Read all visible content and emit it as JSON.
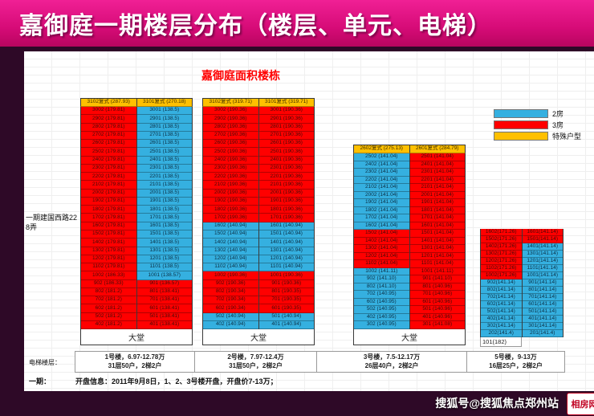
{
  "banner": {
    "title": "嘉御庭一期楼层分布（楼层、单元、电梯）"
  },
  "sheet": {
    "title": "嘉御庭面积楼栋",
    "address_label": "一期建国西路228弄",
    "legend": [
      {
        "label": "2房",
        "color": "#35b0e0"
      },
      {
        "label": "3房",
        "color": "#ff0000"
      },
      {
        "label": "特殊户型",
        "color": "#ffc000"
      }
    ],
    "colors": {
      "two_room": "#35b0e0",
      "three_room": "#ff0000",
      "special": "#ffc000"
    },
    "buildings": [
      {
        "id": "b1",
        "num": "1",
        "headers": [
          "3102复式 (287.93)",
          "3101复式 (270.18)"
        ],
        "columns": [
          [
            "r|3002 (179.81)",
            "r|2902 (179.81)",
            "r|2802 (179.81)",
            "r|2702 (179.81)",
            "r|2602 (179.81)",
            "r|2502 (179.81)",
            "r|2402 (179.81)",
            "r|2302 (179.81)",
            "r|2202 (179.81)",
            "r|2102 (179.81)",
            "r|2002 (179.81)",
            "r|1902 (179.81)",
            "r|1802 (179.81)",
            "r|1702 (179.81)",
            "r|1602 (179.81)",
            "r|1502 (179.81)",
            "r|1402 (179.81)",
            "r|1302 (179.81)",
            "r|1202 (179.81)",
            "r|1102 (179.81)",
            "r|1002 (186.33)",
            "r|902 (186.33)",
            "r|802 (181.2)",
            "r|702 (181.2)",
            "r|602 (181.2)",
            "r|502 (181.2)",
            "r|402 (181.2)"
          ],
          [
            "b|3001 (138.5)",
            "b|2901 (138.5)",
            "b|2801 (138.5)",
            "b|2701 (138.5)",
            "b|2601 (138.5)",
            "b|2501 (138.5)",
            "b|2401 (138.5)",
            "b|2301 (138.5)",
            "b|2201 (138.5)",
            "b|2101 (138.5)",
            "b|2001 (138.5)",
            "b|1901 (138.5)",
            "b|1801 (138.5)",
            "b|1701 (138.5)",
            "b|1601 (138.5)",
            "b|1501 (138.5)",
            "b|1401 (138.5)",
            "b|1301 (138.5)",
            "b|1201 (138.5)",
            "b|1101 (138.5)",
            "b|1001 (138.57)",
            "r|901 (136.57)",
            "r|801 (138.41)",
            "r|701 (138.41)",
            "r|601 (138.41)",
            "r|501 (138.41)",
            "r|401 (138.41)"
          ]
        ],
        "lobby": "大堂",
        "info_line1": "1号楼，6.97-12.78万",
        "info_line2": "31层50户，2梯2户"
      },
      {
        "id": "b2",
        "num": "2",
        "headers": [
          "3102复式 (319.71)",
          "3101复式 (319.71)"
        ],
        "columns": [
          [
            "r|3002 (190.36)",
            "r|2902 (190.36)",
            "r|2802 (190.36)",
            "r|2702 (190.36)",
            "r|2602 (190.36)",
            "r|2502 (190.36)",
            "r|2402 (190.36)",
            "r|2302 (190.36)",
            "r|2202 (190.36)",
            "r|2102 (190.36)",
            "r|2002 (190.36)",
            "r|1902 (190.36)",
            "r|1802 (190.36)",
            "r|1702 (190.36)",
            "b|1602 (140.94)",
            "b|1502 (140.94)",
            "b|1402 (140.94)",
            "b|1302 (140.94)",
            "b|1202 (140.94)",
            "b|1102 (140.94)",
            "r|1002 (190.36)",
            "r|902 (190.36)",
            "r|802 (190.34)",
            "r|702 (190.34)",
            "r|602 (190.34)",
            "b|502 (140.94)",
            "b|402 (140.94)"
          ],
          [
            "r|3001 (190.36)",
            "r|2901 (190.36)",
            "r|2801 (190.36)",
            "r|2701 (190.36)",
            "r|2601 (190.36)",
            "r|2501 (190.36)",
            "r|2401 (190.36)",
            "r|2301 (190.36)",
            "r|2201 (190.36)",
            "r|2101 (190.36)",
            "r|2001 (190.36)",
            "r|1901 (190.36)",
            "r|1801 (190.36)",
            "r|1701 (190.36)",
            "b|1601 (140.94)",
            "b|1501 (140.94)",
            "b|1401 (140.94)",
            "b|1301 (140.94)",
            "b|1201 (140.94)",
            "b|1101 (140.94)",
            "r|1001 (190.36)",
            "r|901 (190.36)",
            "r|801 (190.35)",
            "r|701 (190.35)",
            "r|601 (190.35)",
            "b|501 (140.94)",
            "b|401 (140.94)"
          ]
        ],
        "lobby": "大堂",
        "info_line1": "2号楼，7.97-12.4万",
        "info_line2": "31层50户，2梯2户"
      },
      {
        "id": "b3",
        "num": "3",
        "headers": [
          "2602复式 (275.13)",
          "2601复式 (284.79)"
        ],
        "columns": [
          [
            "b|2502 (141.04)",
            "b|2402 (141.04)",
            "b|2302 (141.04)",
            "b|2202 (141.04)",
            "b|2102 (141.04)",
            "b|2002 (141.04)",
            "b|1902 (141.04)",
            "b|1802 (141.04)",
            "b|1702 (141.04)",
            "b|1602 (141.04)",
            "r|1502 (141.04)",
            "r|1402 (141.04)",
            "r|1302 (141.04)",
            "r|1202 (141.04)",
            "r|1102 (141.04)",
            "b|1002 (141.11)",
            "b|902 (141.10)",
            "b|802 (141.10)",
            "b|702 (140.95)",
            "b|602 (140.95)",
            "b|502 (140.95)",
            "b|402 (140.95)",
            "b|302 (140.95)"
          ],
          [
            "r|2501 (141.04)",
            "r|2401 (141.04)",
            "r|2301 (141.04)",
            "r|2201 (141.04)",
            "r|2101 (141.04)",
            "r|2001 (141.04)",
            "r|1901 (141.04)",
            "r|1801 (141.04)",
            "r|1701 (141.04)",
            "r|1601 (141.04)",
            "r|1501 (141.04)",
            "r|1401 (141.04)",
            "r|1301 (141.04)",
            "r|1201 (141.04)",
            "r|1101 (141.04)",
            "r|1001 (141.11)",
            "r|901 (141.10)",
            "r|801 (140.96)",
            "r|701 (140.96)",
            "r|601 (140.96)",
            "r|501 (140.96)",
            "r|401 (140.96)",
            "r|301 (141.08)"
          ]
        ],
        "lobby": "大堂",
        "info_line1": "3号楼，7.5-12.17万",
        "info_line2": "26层40户，2梯2户"
      },
      {
        "id": "b5",
        "num": "5",
        "headers": [],
        "columns": [
          [
            "r|1602(171.26)",
            "r|1502(171.26)",
            "r|1402(171.26)",
            "r|1302(171.26)",
            "r|1202(171.26)",
            "r|1102(171.26)",
            "r|1002(171.26)",
            "b|902(141.14)",
            "b|802(141.14)",
            "b|702(141.14)",
            "b|602(141.14)",
            "b|502(141.14)",
            "b|402(141.14)",
            "b|302(141.14)",
            "b|202(141.4)"
          ],
          [
            "r|1601(141.14)",
            "r|1501(141.14)",
            "b|1401(141.14)",
            "b|1301(141.14)",
            "b|1201(141.14)",
            "b|1101(141.14)",
            "b|1001(141.14)",
            "b|901(141.14)",
            "b|801(141.14)",
            "b|701(141.14)",
            "b|601(141.14)",
            "b|501(141.14)",
            "b|401(141.14)",
            "b|301(141.14)",
            "b|201(141.4)"
          ]
        ],
        "footnote": "101(182)",
        "info_line1": "5号楼，9-13万",
        "info_line2": "16层25户，2梯2户"
      }
    ],
    "footer": {
      "elevator_label": "电梯楼层：",
      "phase_label": "一期：",
      "opening_info": "开盘信息：2011年9月8日，1、2、3号楼开盘，开盘价7-13万；"
    }
  },
  "watermark": {
    "text": "搜狐号@搜狐焦点郑州站",
    "logo": "相房网"
  }
}
